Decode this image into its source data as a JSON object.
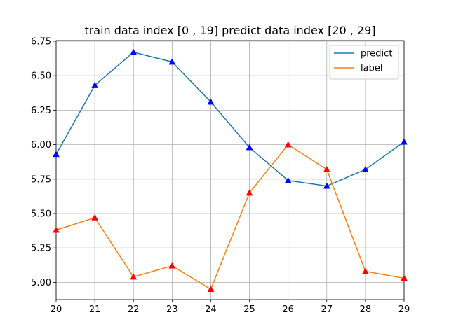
{
  "chart_data": {
    "type": "line",
    "title": "train data index [0 , 19]    predict data index [20 , 29]",
    "xlabel": "",
    "ylabel": "",
    "x": [
      20,
      21,
      22,
      23,
      24,
      25,
      26,
      27,
      28,
      29
    ],
    "xlim": [
      20,
      29
    ],
    "ylim": [
      4.875,
      6.755
    ],
    "x_ticks": [
      "20",
      "21",
      "22",
      "23",
      "24",
      "25",
      "26",
      "27",
      "28",
      "29"
    ],
    "y_ticks": [
      "5.00",
      "5.25",
      "5.50",
      "5.75",
      "6.00",
      "6.25",
      "6.50",
      "6.75"
    ],
    "y_tick_values": [
      5.0,
      5.25,
      5.5,
      5.75,
      6.0,
      6.25,
      6.5,
      6.75
    ],
    "grid": true,
    "legend_position": "top-right",
    "series": [
      {
        "name": "predict",
        "color": "#1f77b4",
        "marker": "triangle",
        "marker_color": "#0000ff",
        "values": [
          5.93,
          6.43,
          6.67,
          6.6,
          6.31,
          5.98,
          5.74,
          5.7,
          5.82,
          6.02
        ]
      },
      {
        "name": "label",
        "color": "#ff7f0e",
        "marker": "triangle",
        "marker_color": "#ff0000",
        "values": [
          5.38,
          5.47,
          5.04,
          5.12,
          4.95,
          5.65,
          6.0,
          5.82,
          5.08,
          5.03
        ]
      }
    ]
  }
}
